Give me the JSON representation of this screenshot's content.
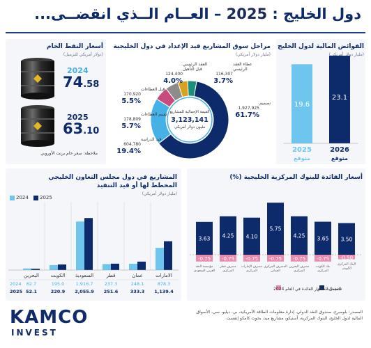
{
  "header": {
    "title_left": "دول الخليج : ",
    "title_year": "2025",
    "title_right": " – العــام الــذي انقضــى..."
  },
  "surplus": {
    "title": "الفوائض المالية لدول الخليج",
    "unit": "(مليار دولار أمريكي)",
    "labels": [
      "2025 متوقع",
      "2026 متوقع"
    ],
    "colors": {
      "2025": "#6ec6ef",
      "2026": "#0d2a6b"
    }
  },
  "projects_market": {
    "title": "مراحل سوق المشاريع قيد الإعداد في دول الخليجية",
    "unit": "(مليار دولار أمريكي)",
    "center_label": "القيمة الإجمالية للمشاريع",
    "center_value": "3,123,141",
    "center_unit": "مليون دولار أمريكي",
    "segments": [
      {
        "name": "تصميم",
        "value": "1,927,925",
        "pct": "61.7%",
        "color": "#0d2a6b"
      },
      {
        "name": "قيد الدراسة",
        "value": "604,780",
        "pct": "19.4%",
        "color": "#46b1e6"
      },
      {
        "name": "تقييم العطاءات",
        "value": "178,809",
        "pct": "5.7%",
        "color": "#c94a7c"
      },
      {
        "name": "قبل العطاءات",
        "value": "170,920",
        "pct": "5.5%",
        "color": "#8c8c8c"
      },
      {
        "name": "العقد الرئيسي قبل التأهيل",
        "value": "124,400",
        "pct": "4.0%",
        "color": "#d9a21e"
      },
      {
        "name": "عطاء العقد الرئيسي",
        "value": "116,307",
        "pct": "3.7%",
        "color": "#1a8f7a"
      }
    ]
  },
  "oil": {
    "title": "أسعار النفط الخام",
    "unit": "(دولار أمريكي للبرميل)",
    "year1": "2024",
    "price1_int": "74",
    "price1_dec": ".58",
    "year2": "2025",
    "price2_int": "63",
    "price2_dec": ".10",
    "note": "ملاحظة: سعر خام برنت الأوروبي"
  },
  "gcc_projects": {
    "title": "المشاريع في دول مجلس التعاون الخليجي",
    "title2": "المخطط لها أو قيد التنفيذ",
    "unit": "(مليار دولار أمريكي)",
    "legend": [
      "2024",
      "2025"
    ],
    "row_label_2024": "2024",
    "row_label_2025": "2025"
  },
  "interest": {
    "title": "أسعار الفائدة للبنوك المركزية الخليجية (%)",
    "legend_current": "المعدل الحالي",
    "legend_cuts": "تخفيضات أسعار الفائدة في العام 2024",
    "colors": {
      "current": "#0d2a6b",
      "cut": "#e98ab0"
    }
  },
  "footer": {
    "logo": "KAMCO",
    "logo_sub": "INVEST",
    "source": "المصدر: بلومبرج، صندوق النقد الدولي، إدارة معلومات الطاقة الأمريكية، بي. ديليو. سي، الأسواق المالية لدول الخليج، البنوك المركزية، أستيكو، مشاريع ميد، بحوث كامكو إنفست"
  },
  "chart_data": [
    {
      "type": "bar",
      "title": "الفوائض المالية لدول الخليج",
      "categories": [
        "2025 متوقع",
        "2026 متوقع"
      ],
      "values": [
        19.6,
        23.1
      ]
    },
    {
      "type": "pie",
      "title": "مراحل سوق المشاريع قيد الإعداد في دول الخليجية",
      "categories": [
        "تصميم",
        "قيد الدراسة",
        "تقييم العطاءات",
        "قبل العطاءات",
        "العقد الرئيسي قبل التأهيل",
        "عطاء العقد الرئيسي"
      ],
      "values": [
        1927925,
        604780,
        178809,
        170920,
        124400,
        116307
      ]
    },
    {
      "type": "bar",
      "title": "المشاريع في دول مجلس التعاون الخليجي المخطط لها أو قيد التنفيذ",
      "categories": [
        "البحرين",
        "الكويت",
        "السعودية",
        "قطر",
        "عمان",
        "الامارات"
      ],
      "series": [
        {
          "name": "2024",
          "values": [
            62.7,
            195.0,
            1916.7,
            237.3,
            248.1,
            878.3
          ],
          "labels": [
            "62.7",
            "195.0",
            "1,916.7",
            "237.3",
            "248.1",
            "878.3"
          ],
          "color": "#6ec6ef"
        },
        {
          "name": "2025",
          "values": [
            52.1,
            220.9,
            2055.9,
            251.6,
            333.3,
            1139.4
          ],
          "labels": [
            "52.1",
            "220.9",
            "2,055.9",
            "251.6",
            "333.3",
            "1,139.4"
          ],
          "color": "#0d2a6b"
        }
      ]
    },
    {
      "type": "bar",
      "title": "أسعار الفائدة للبنوك المركزية الخليجية (%)",
      "categories": [
        "مؤسسة النقد العربي السعودي",
        "مصرف قطر المركزي",
        "مصرف الإمارات المركزي",
        "المصرف المركزي العماني",
        "مصرف البحرين المركزي",
        "بنك الكويت المركزي",
        "البنك المركزي الكويتي"
      ],
      "series": [
        {
          "name": "المعدل الحالي",
          "values": [
            3.63,
            4.25,
            4.1,
            5.75,
            4.25,
            3.65,
            3.5
          ]
        },
        {
          "name": "تخفيضات أسعار الفائدة في العام 2024",
          "values": [
            -0.75,
            -0.75,
            -0.75,
            -0.75,
            -0.75,
            -0.75,
            -0.5
          ]
        }
      ]
    }
  ]
}
